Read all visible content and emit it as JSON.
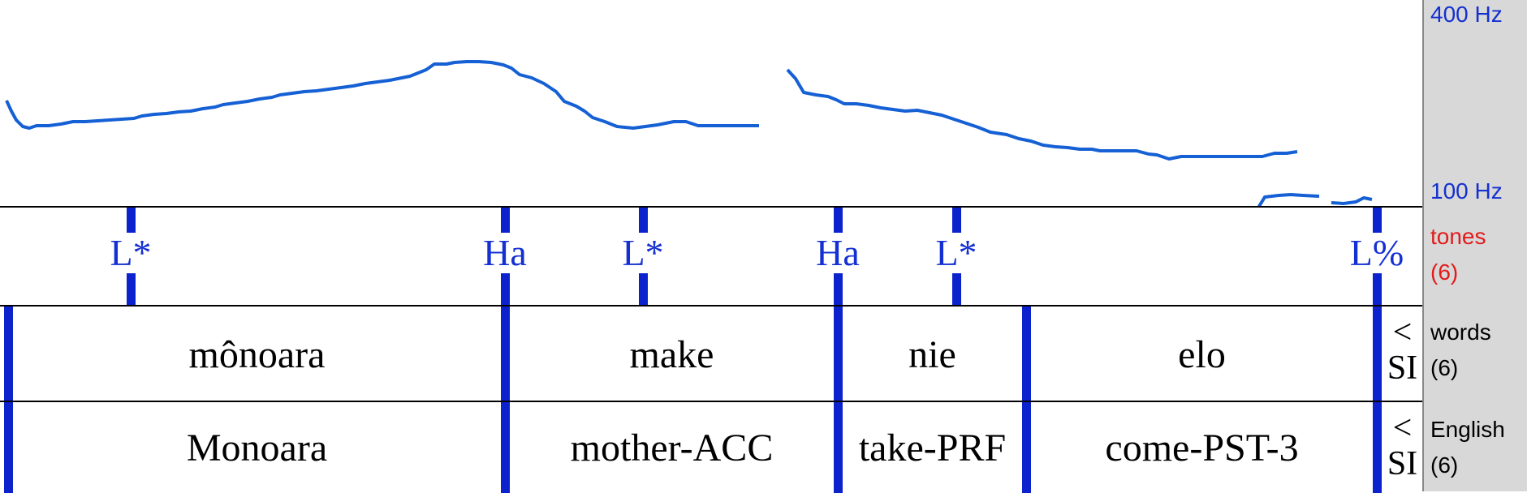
{
  "pitch": {
    "top_label": "400 Hz",
    "bottom_label": "100 Hz",
    "line_color": "#1560d4"
  },
  "tiers": {
    "tones": {
      "name": "tones",
      "count": "(6)",
      "name_color": "#e21b1b",
      "labels": [
        "L*",
        "Ha",
        "L*",
        "Ha",
        "L*",
        "L%"
      ]
    },
    "words": {
      "name": "words",
      "count": "(6)",
      "cells": [
        "mônoara",
        "make",
        "nie",
        "elo"
      ],
      "last_cell": "< SI"
    },
    "english": {
      "name": "English",
      "count": "(6)",
      "cells": [
        "Monoara",
        "mother-ACC",
        "take-PRF",
        "come-PST-3"
      ],
      "last_cell": "< SI"
    }
  },
  "colors": {
    "boundary": "#0b22cc",
    "tone_text": "#1430d2",
    "sidebar_bg": "#d8d8d8"
  }
}
